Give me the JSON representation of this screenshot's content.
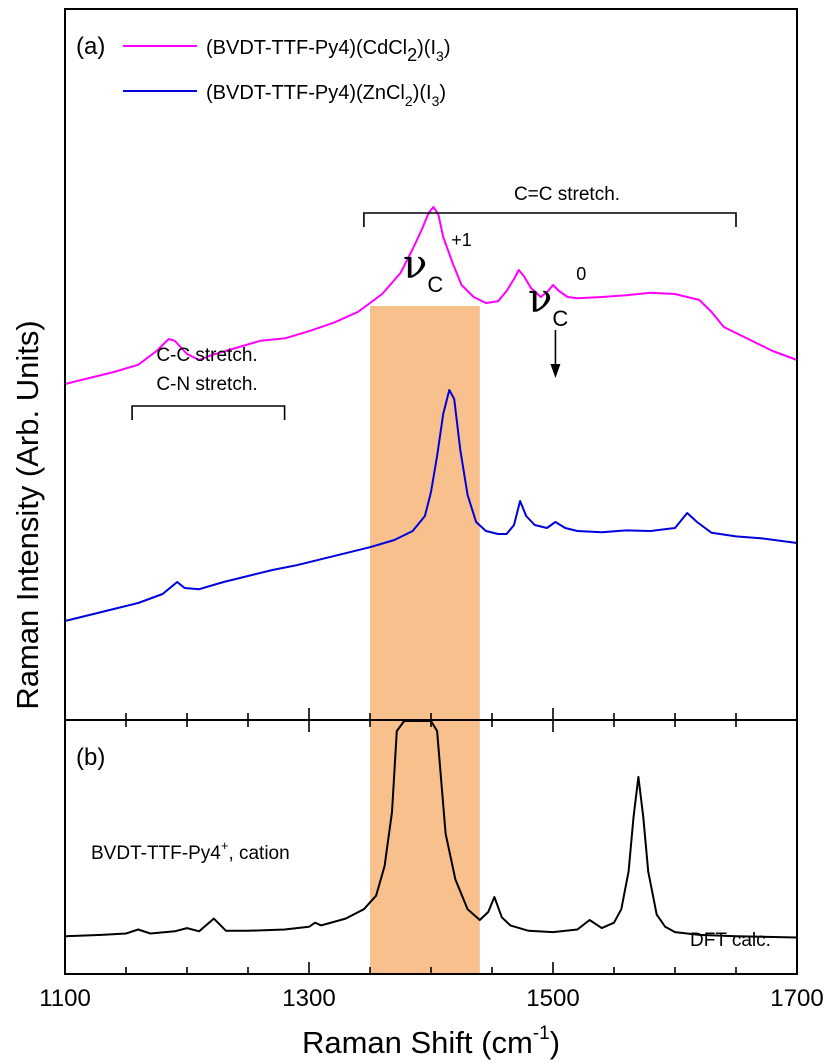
{
  "chart_data": {
    "type": "line",
    "xlabel": "Raman Shift (cm",
    "xlabel_sup": "-1",
    "xlabel_end": ")",
    "ylabel": "Raman Intensity (Arb. Units)",
    "xlim": [
      1100,
      1700
    ],
    "xticks_major": [
      1100,
      1300,
      1500,
      1700
    ],
    "xticks_minor": [
      1150,
      1200,
      1250,
      1350,
      1400,
      1450,
      1550,
      1600,
      1650
    ],
    "highlight_band": {
      "x_start": 1350,
      "x_end": 1440,
      "color": "#f8c08c"
    },
    "panels": [
      {
        "id": "a",
        "label": "(a)",
        "ylim": [
          0,
          100
        ],
        "legend_position": "top-left",
        "series": [
          {
            "name_parts": [
              "(BVDT-TTF-Py4)(CdCl",
              "2",
              ")(I",
              "3",
              ")"
            ],
            "color": "#ff00ff",
            "x": [
              1100,
              1120,
              1140,
              1160,
              1175,
              1185,
              1190,
              1200,
              1210,
              1220,
              1240,
              1260,
              1280,
              1300,
              1320,
              1340,
              1360,
              1375,
              1385,
              1392,
              1398,
              1402,
              1406,
              1410,
              1418,
              1425,
              1435,
              1445,
              1455,
              1462,
              1468,
              1472,
              1476,
              1482,
              1490,
              1496,
              1500,
              1505,
              1512,
              1520,
              1540,
              1560,
              1580,
              1600,
              1620,
              1630,
              1640,
              1660,
              1680,
              1700
            ],
            "y": [
              56.0,
              57.0,
              58.0,
              59.2,
              61.5,
              63.5,
              63.2,
              61.0,
              60.0,
              60.8,
              62.0,
              63.2,
              63.6,
              64.8,
              66.2,
              68.0,
              71.0,
              74.5,
              78.5,
              81.5,
              84.5,
              85.5,
              84.3,
              80.5,
              76.0,
              72.5,
              70.5,
              69.5,
              69.8,
              71.5,
              73.5,
              75.0,
              74.0,
              72.0,
              70.5,
              71.5,
              72.5,
              71.5,
              70.5,
              70.3,
              70.5,
              70.8,
              71.2,
              71.0,
              70.0,
              68.0,
              65.5,
              63.5,
              61.5,
              60.0
            ]
          },
          {
            "name_parts": [
              "(BVDT-TTF-Py4)(ZnCl",
              "2",
              ")(I",
              "3",
              ")"
            ],
            "color": "#0000dd",
            "x": [
              1100,
              1120,
              1140,
              1160,
              1180,
              1192,
              1198,
              1210,
              1230,
              1250,
              1270,
              1290,
              1310,
              1330,
              1350,
              1370,
              1385,
              1395,
              1400,
              1405,
              1410,
              1415,
              1419,
              1424,
              1430,
              1437,
              1445,
              1455,
              1462,
              1468,
              1473,
              1478,
              1485,
              1495,
              1502,
              1510,
              1520,
              1540,
              1560,
              1580,
              1600,
              1610,
              1618,
              1630,
              1650,
              1670,
              1700
            ],
            "y": [
              16.5,
              17.5,
              18.5,
              19.5,
              21.0,
              23.0,
              22.0,
              21.8,
              23.0,
              24.0,
              25.0,
              25.8,
              26.8,
              27.8,
              28.8,
              30.0,
              31.5,
              34.0,
              38.0,
              44.0,
              51.0,
              55.0,
              53.5,
              45.0,
              37.5,
              33.0,
              31.5,
              31.0,
              31.0,
              32.5,
              36.5,
              34.0,
              32.5,
              32.0,
              33.0,
              32.0,
              31.5,
              31.3,
              31.6,
              31.5,
              32.0,
              34.5,
              33.0,
              31.2,
              30.6,
              30.3,
              29.5
            ]
          }
        ],
        "annotations": {
          "cc_stretch": "C-C stretch.",
          "cn_stretch": "C-N stretch.",
          "cc_bracket_x": [
            1155,
            1280
          ],
          "c_eq_c": "C=C stretch.",
          "c_eq_c_bracket_x": [
            1345,
            1650
          ],
          "nu_c_plus1_sup": "+1",
          "nu_c_0_sup": "0",
          "nu_symbol": "ν",
          "nu_sub": "C",
          "arrow_x": 1502
        }
      },
      {
        "id": "b",
        "label": "(b)",
        "ylim": [
          0,
          100
        ],
        "series": [
          {
            "name": "BVDT-TTF-Py4+, cation",
            "color": "#000000",
            "x": [
              1100,
              1130,
              1150,
              1160,
              1170,
              1190,
              1200,
              1210,
              1222,
              1232,
              1250,
              1280,
              1300,
              1305,
              1310,
              1330,
              1345,
              1355,
              1362,
              1368,
              1372,
              1378,
              1384,
              1390,
              1395,
              1400,
              1405,
              1412,
              1420,
              1430,
              1440,
              1447,
              1452,
              1458,
              1465,
              1480,
              1500,
              1520,
              1530,
              1540,
              1550,
              1556,
              1562,
              1566,
              1570,
              1574,
              1578,
              1585,
              1592,
              1600,
              1620,
              1650,
              1700
            ],
            "y": [
              4.0,
              4.5,
              5.0,
              6.5,
              5.0,
              5.8,
              7.0,
              5.8,
              10.5,
              6.0,
              6.0,
              6.5,
              7.5,
              9.0,
              8.0,
              10.5,
              14.0,
              19.0,
              30.0,
              50.0,
              80.0,
              100,
              100,
              100,
              100,
              100,
              80.0,
              42.0,
              25.0,
              14.0,
              10.0,
              13.0,
              18.5,
              11.0,
              8.0,
              6.0,
              5.5,
              6.5,
              10.0,
              7.0,
              9.0,
              14.0,
              28.0,
              48.0,
              63.0,
              48.0,
              28.0,
              12.0,
              7.5,
              5.5,
              4.5,
              4.0,
              3.5
            ]
          }
        ],
        "cation_label": "BVDT-TTF-Py4",
        "cation_sup": "+",
        "cation_suffix": ", cation",
        "dft_label": "DFT calc."
      }
    ]
  }
}
